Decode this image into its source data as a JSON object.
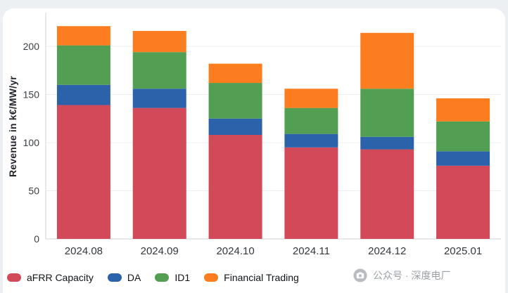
{
  "chart_data": {
    "type": "bar",
    "stacked": true,
    "title": "",
    "xlabel": "",
    "ylabel": "Revenue in k€/MW/yr",
    "categories": [
      "2024.08",
      "2024.09",
      "2024.10",
      "2024.11",
      "2024.12",
      "2025.01"
    ],
    "series": [
      {
        "name": "aFRR Capacity",
        "color": "#d2495a",
        "values": [
          139,
          136,
          108,
          95,
          93,
          76
        ]
      },
      {
        "name": "DA",
        "color": "#2b62a9",
        "values": [
          21,
          20,
          17,
          14,
          13,
          15
        ]
      },
      {
        "name": "ID1",
        "color": "#529e52",
        "values": [
          41,
          38,
          37,
          27,
          50,
          31
        ]
      },
      {
        "name": "Financial Trading",
        "color": "#fb7d1f",
        "values": [
          20,
          22,
          20,
          20,
          58,
          24
        ]
      }
    ],
    "totals": [
      221,
      216,
      182,
      156,
      214,
      146
    ],
    "ylim": [
      0,
      235
    ],
    "yticks": [
      0,
      50,
      100,
      150,
      200
    ],
    "grid": true,
    "legend_position": "bottom-left"
  },
  "watermark": {
    "icon": "camera-logo",
    "text": "公众号 · 深度电厂"
  }
}
